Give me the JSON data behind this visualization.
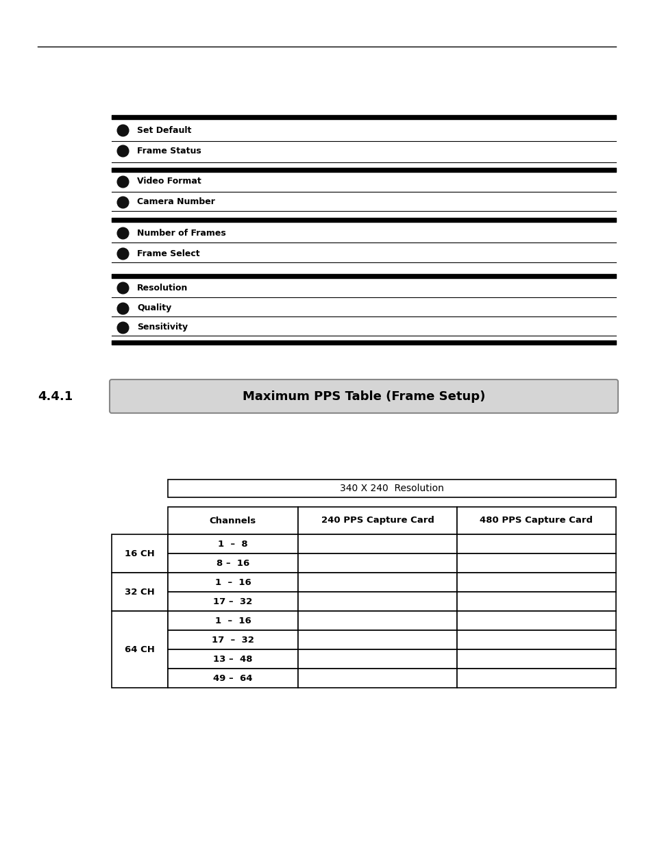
{
  "section_number": "4.4.1",
  "section_title": "Maximum PPS Table (Frame Setup)",
  "table_header_title": "340 X 240  Resolution",
  "table_columns": [
    "Channels",
    "240 PPS Capture Card",
    "480 PPS Capture Card"
  ],
  "table_row_groups": [
    {
      "group_label": "16 CH",
      "rows": [
        "1  –  8",
        "8 –  16"
      ]
    },
    {
      "group_label": "32 CH",
      "rows": [
        "1  –  16",
        "17 –  32"
      ]
    },
    {
      "group_label": "64 CH",
      "rows": [
        "1  –  16",
        "17  –  32",
        "13 –  48",
        "49 –  64"
      ]
    }
  ],
  "bullet_items": [
    {
      "label": "Set Default",
      "group_start": true,
      "thick_top": true
    },
    {
      "label": "Frame Status",
      "group_start": false,
      "thick_top": false
    },
    {
      "label": "Video Format",
      "group_start": true,
      "thick_top": true
    },
    {
      "label": "Camera Number",
      "group_start": false,
      "thick_top": false
    },
    {
      "label": "Number of Frames",
      "group_start": true,
      "thick_top": true
    },
    {
      "label": "Frame Select",
      "group_start": false,
      "thick_top": false
    },
    {
      "label": "Resolution",
      "group_start": true,
      "thick_top": true
    },
    {
      "label": "Quality",
      "group_start": false,
      "thick_top": false
    },
    {
      "label": "Sensitivity",
      "group_start": false,
      "thick_top": false
    }
  ],
  "bg_color": "#ffffff",
  "text_color": "#000000"
}
